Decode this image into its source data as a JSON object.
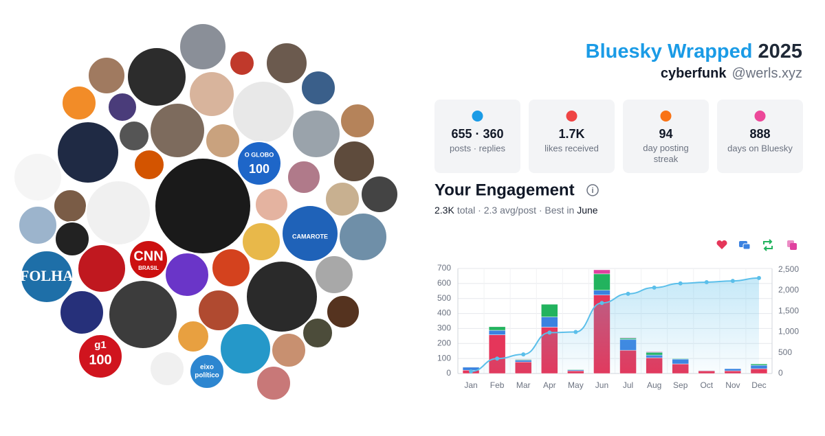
{
  "header": {
    "title": "Bluesky Wrapped",
    "year": "2025",
    "username": "cyberfunk",
    "handle": "@werls.xyz"
  },
  "stats": [
    {
      "value": "655 · 360",
      "label": "posts · replies"
    },
    {
      "value": "1.7K",
      "label": "likes received"
    },
    {
      "value": "94",
      "label": "day posting streak"
    },
    {
      "value": "888",
      "label": "days on Bluesky"
    }
  ],
  "avatar_labels": {
    "folha": "FOLHA",
    "cnn": "CNN",
    "cnn_sub": "BRASIL",
    "globo": "O GLOBO",
    "globo_num": "100",
    "g1": "g1",
    "g1_num": "100",
    "eixo": "eixo",
    "eixo_sub": "político",
    "camarote": "CAMAROTE"
  },
  "engagement": {
    "title": "Your Engagement",
    "total": "2.3K",
    "summary": "total · 2.3 avg/post · Best in",
    "best": "June"
  },
  "chart_data": {
    "type": "bar",
    "stacked": true,
    "categories": [
      "Jan",
      "Feb",
      "Mar",
      "Apr",
      "May",
      "Jun",
      "Jul",
      "Aug",
      "Sep",
      "Oct",
      "Nov",
      "Dec"
    ],
    "series": [
      {
        "color": "#e5365a",
        "values": [
          22,
          258,
          77,
          309,
          18,
          523,
          155,
          105,
          64,
          18,
          18,
          32
        ]
      },
      {
        "color": "#3b82e0",
        "values": [
          20,
          30,
          12,
          68,
          6,
          32,
          72,
          18,
          32,
          3,
          14,
          23
        ]
      },
      {
        "color": "#22b35e",
        "values": [
          3,
          24,
          5,
          85,
          4,
          109,
          9,
          18,
          4,
          1,
          0,
          9
        ]
      },
      {
        "color": "#e0409f",
        "values": [
          2,
          2,
          3,
          2,
          2,
          27,
          4,
          4,
          0,
          0,
          0,
          0
        ]
      },
      {
        "type": "line",
        "axis": "y2",
        "color": "#5bbfea",
        "values": [
          50,
          360,
          460,
          985,
          1000,
          1700,
          1920,
          2070,
          2170,
          2200,
          2230,
          2300
        ]
      }
    ],
    "ylim": [
      0,
      700
    ],
    "yticks": [
      0,
      100,
      200,
      300,
      400,
      500,
      600,
      700
    ],
    "y2lim": [
      0,
      2530
    ],
    "y2ticks": [
      0,
      500,
      {
        "value": 1000,
        "label": "1,000"
      },
      {
        "value": 1500,
        "label": "1,500"
      },
      {
        "value": 2000,
        "label": "2,000"
      },
      {
        "value": 2500,
        "label": "2,500"
      }
    ],
    "grid": true
  }
}
